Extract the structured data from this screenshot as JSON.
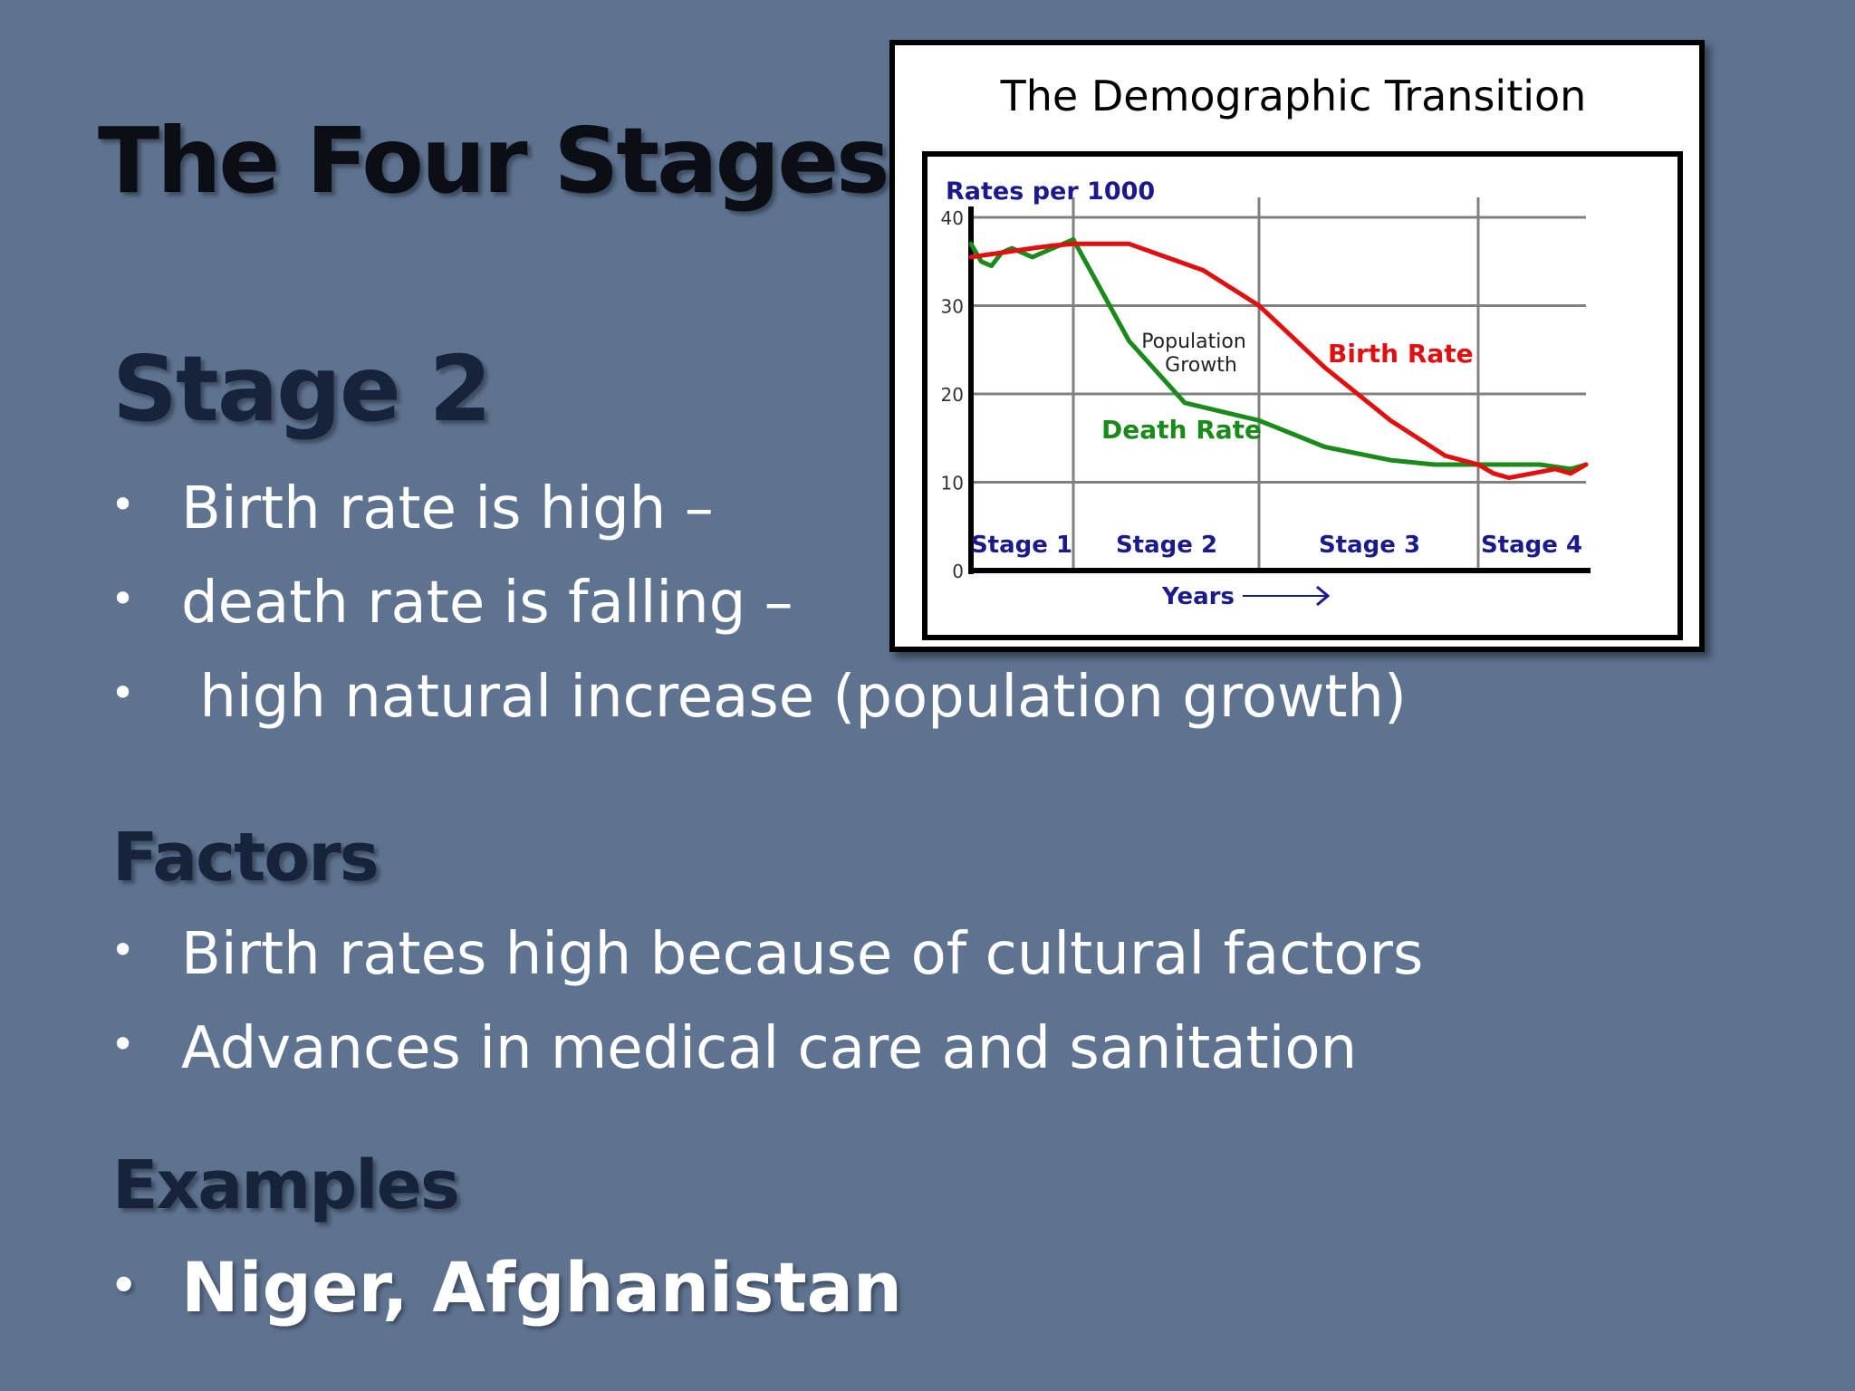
{
  "slide": {
    "title": "The Four Stages",
    "stage_heading": "Stage 2",
    "stage_bullets": [
      "Birth rate is high –",
      "death rate is falling –",
      " high natural increase (population growth)"
    ],
    "factors_heading": "Factors",
    "factors_bullets": [
      "Birth rates high because of cultural factors",
      "Advances in medical care and sanitation"
    ],
    "examples_heading": "Examples",
    "examples_bullets": [
      "Niger, Afghanistan"
    ],
    "bullet_glyph": "•"
  },
  "chart_data": {
    "type": "line",
    "title": "The Demographic Transition",
    "ylabel": "Rates per 1000",
    "xlabel": "Years",
    "ylim": [
      0,
      40
    ],
    "yticks": [
      "0",
      "10",
      "20",
      "30",
      "40"
    ],
    "grid": true,
    "stages": [
      "Stage 1",
      "Stage 2",
      "Stage 3",
      "Stage 4"
    ],
    "annotations": {
      "population_growth": [
        "Population",
        "Growth"
      ]
    },
    "series": [
      {
        "name": "Birth Rate",
        "color": "#e01010",
        "x": [
          0,
          0.3,
          0.6,
          0.8,
          1.0,
          1.3,
          1.7,
          2.0,
          2.3,
          2.6,
          2.85,
          3.0,
          3.1,
          3.2,
          3.35,
          3.5,
          3.6,
          3.7
        ],
        "values": [
          35.5,
          36,
          36.5,
          36.8,
          37,
          37,
          34,
          30,
          23,
          17,
          13,
          12,
          11,
          10.5,
          11,
          11.5,
          11,
          12
        ]
      },
      {
        "name": "Death Rate",
        "color": "#1a8a1a",
        "x": [
          0,
          0.1,
          0.2,
          0.3,
          0.4,
          0.5,
          0.6,
          0.7,
          0.8,
          0.9,
          1.0,
          1.3,
          1.6,
          2.0,
          2.3,
          2.6,
          2.8,
          3.0,
          3.2,
          3.4,
          3.6,
          3.7
        ],
        "values": [
          37,
          35,
          34.5,
          36,
          36.5,
          36,
          35.5,
          36,
          36.5,
          37,
          37.5,
          26,
          19,
          17,
          14,
          12.5,
          12,
          12,
          12,
          12,
          11.5,
          12
        ]
      }
    ]
  }
}
